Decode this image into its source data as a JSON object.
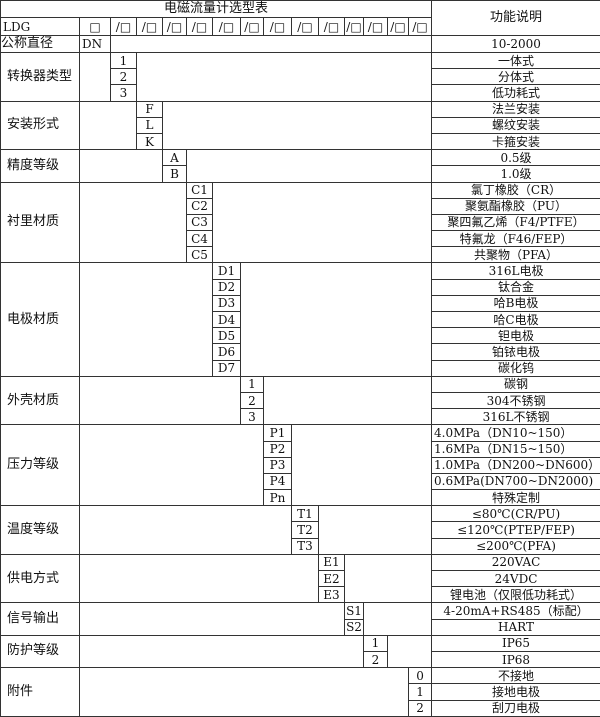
{
  "title": "电磁流量计选型表",
  "function_header": "功能说明",
  "model": "LDG",
  "first_box": "□",
  "boxes": [
    "/□",
    "/□",
    "/□",
    "/□",
    "/□",
    "/□",
    "/□",
    "/□",
    "/□",
    "/□",
    "/□",
    "/□",
    "/□"
  ],
  "nominal": {
    "label": "公称直径",
    "code": "DN",
    "desc": "10-2000"
  },
  "groups": [
    {
      "label": "转换器类型",
      "col": 2,
      "items": [
        {
          "code": "1",
          "desc": "一体式"
        },
        {
          "code": "2",
          "desc": "分体式"
        },
        {
          "code": "3",
          "desc": "低功耗式"
        }
      ]
    },
    {
      "label": "安装形式",
      "col": 3,
      "items": [
        {
          "code": "F",
          "desc": "法兰安装"
        },
        {
          "code": "L",
          "desc": "螺纹安装"
        },
        {
          "code": "K",
          "desc": "卡箍安装"
        }
      ]
    },
    {
      "label": "精度等级",
      "col": 4,
      "items": [
        {
          "code": "A",
          "desc": "0.5级"
        },
        {
          "code": "B",
          "desc": "1.0级"
        }
      ]
    },
    {
      "label": "衬里材质",
      "col": 5,
      "items": [
        {
          "code": "C1",
          "desc": "氯丁橡胶（CR）"
        },
        {
          "code": "C2",
          "desc": "聚氨酯橡胶（PU）"
        },
        {
          "code": "C3",
          "desc": "聚四氟乙烯（F4/PTFE）"
        },
        {
          "code": "C4",
          "desc": "特氟龙（F46/FEP）"
        },
        {
          "code": "C5",
          "desc": "共聚物（PFA）"
        }
      ]
    },
    {
      "label": "电极材质",
      "col": 6,
      "items": [
        {
          "code": "D1",
          "desc": "316L电极"
        },
        {
          "code": "D2",
          "desc": "钛合金"
        },
        {
          "code": "D3",
          "desc": "哈B电极"
        },
        {
          "code": "D4",
          "desc": "哈C电极"
        },
        {
          "code": "D5",
          "desc": "钽电极"
        },
        {
          "code": "D6",
          "desc": "铂铱电极"
        },
        {
          "code": "D7",
          "desc": "碳化钨"
        }
      ]
    },
    {
      "label": "外壳材质",
      "col": 7,
      "items": [
        {
          "code": "1",
          "desc": "碳钢"
        },
        {
          "code": "2",
          "desc": "304不锈钢"
        },
        {
          "code": "3",
          "desc": "316L不锈钢"
        }
      ]
    },
    {
      "label": "压力等级",
      "col": 8,
      "items": [
        {
          "code": "P1",
          "desc": "4.0MPa（DN10~150）",
          "align": "left"
        },
        {
          "code": "P2",
          "desc": "1.6MPa（DN15~150）",
          "align": "left"
        },
        {
          "code": "P3",
          "desc": "1.0MPa（DN200~DN600）",
          "align": "left"
        },
        {
          "code": "P4",
          "desc": "0.6MPa(DN700~DN2000)",
          "align": "left"
        },
        {
          "code": "Pn",
          "desc": "特殊定制"
        }
      ]
    },
    {
      "label": "温度等级",
      "col": 9,
      "items": [
        {
          "code": "T1",
          "desc": "≤80℃(CR/PU)"
        },
        {
          "code": "T2",
          "desc": "≤120℃(PTEP/FEP)"
        },
        {
          "code": "T3",
          "desc": "≤200℃(PFA)"
        }
      ]
    },
    {
      "label": "供电方式",
      "col": 10,
      "items": [
        {
          "code": "E1",
          "desc": "220VAC"
        },
        {
          "code": "E2",
          "desc": "24VDC"
        },
        {
          "code": "E3",
          "desc": "锂电池（仅限低功耗式）"
        }
      ]
    },
    {
      "label": "信号输出",
      "col": 11,
      "items": [
        {
          "code": "S1",
          "desc": "4-20mA+RS485（标配）"
        },
        {
          "code": "S2",
          "desc": "HART"
        }
      ]
    },
    {
      "label": "防护等级",
      "col": 12,
      "items": [
        {
          "code": "1",
          "desc": "IP65"
        },
        {
          "code": "2",
          "desc": "IP68"
        }
      ]
    },
    {
      "label": "附件",
      "col": 14,
      "items": [
        {
          "code": "0",
          "desc": "不接地"
        },
        {
          "code": "1",
          "desc": "接地电极"
        },
        {
          "code": "2",
          "desc": "刮刀电极"
        }
      ]
    }
  ]
}
